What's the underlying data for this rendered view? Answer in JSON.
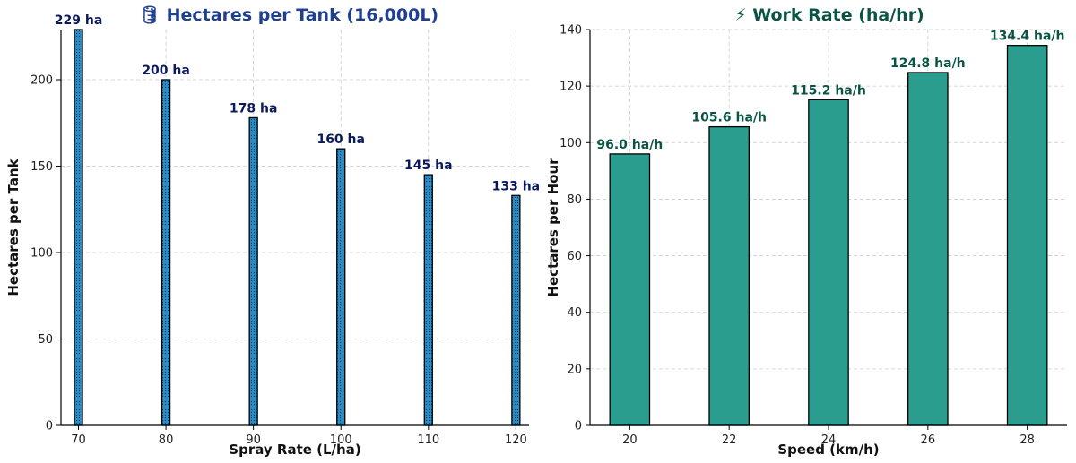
{
  "colors": {
    "left_title": "#1f3f8f",
    "right_title": "#0b5345",
    "left_bar_fill": "#2b8cc4",
    "right_bar_fill": "#2a9d8f",
    "bar_edge": "#000000",
    "left_label": "#0b1a5c",
    "right_label": "#0b5345"
  },
  "chart_data": [
    {
      "type": "bar",
      "title_icon": "tank-icon",
      "title": "🛢 Hectares per Tank (16,000L)",
      "xlabel": "Spray Rate (L/ha)",
      "ylabel": "Hectares per Tank",
      "categories": [
        "70",
        "80",
        "90",
        "100",
        "110",
        "120"
      ],
      "x": [
        70,
        80,
        90,
        100,
        110,
        120
      ],
      "values": [
        229,
        200,
        178,
        160,
        145,
        133
      ],
      "data_labels": [
        "229 ha",
        "200 ha",
        "178 ha",
        "160 ha",
        "145 ha",
        "133 ha"
      ],
      "xlim": [
        68,
        121.5
      ],
      "ylim": [
        0,
        229
      ],
      "yticks": [
        0,
        50,
        100,
        150,
        200
      ],
      "grid": true,
      "bar_width_data_units": 0.8
    },
    {
      "type": "bar",
      "title_icon": "lightning-icon",
      "title": "⚡ Work Rate (ha/hr)",
      "xlabel": "Speed (km/h)",
      "ylabel": "Hectares per Hour",
      "categories": [
        "20",
        "22",
        "24",
        "26",
        "28"
      ],
      "x": [
        20,
        22,
        24,
        26,
        28
      ],
      "values": [
        96.0,
        105.6,
        115.2,
        124.8,
        134.4
      ],
      "data_labels": [
        "96.0 ha/h",
        "105.6 ha/h",
        "115.2 ha/h",
        "124.8 ha/h",
        "134.4 ha/h"
      ],
      "xlim": [
        19.2,
        28.8
      ],
      "ylim": [
        0,
        140
      ],
      "yticks": [
        0,
        20,
        40,
        60,
        80,
        100,
        120,
        140
      ],
      "grid": true,
      "bar_width_data_units": 0.8
    }
  ]
}
